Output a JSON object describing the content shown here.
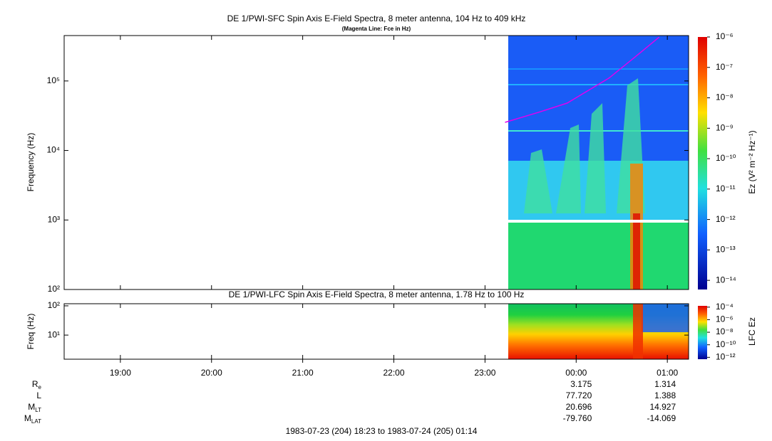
{
  "chart_data": [
    {
      "type": "spectrogram",
      "title": "DE 1/PWI-SFC  Spin Axis E-Field Spectra, 8 meter antenna, 104 Hz to 409 kHz",
      "subtitle": "(Magenta Line: Fce in Hz)",
      "y_label": "Frequency (Hz)",
      "log_y": true,
      "xlim": [
        18.3833,
        25.2333
      ],
      "ylim": [
        100,
        450000
      ],
      "yticks": [
        {
          "value": 100,
          "label": "10²"
        },
        {
          "value": 1000,
          "label": "10³"
        },
        {
          "value": 10000,
          "label": "10⁴"
        },
        {
          "value": 100000,
          "label": "10⁵"
        }
      ],
      "line": {
        "color": "#e000f0",
        "x": [
          23.22,
          23.59,
          23.9,
          24.36,
          24.67,
          24.91
        ],
        "values": [
          25400,
          35500,
          48000,
          110000,
          235000,
          427000
        ]
      },
      "colorbar": {
        "label": "Ez (V² m⁻² Hz⁻¹)",
        "lim": [
          1e-06,
          5e-15
        ],
        "ticks": [
          {
            "value": 1e-06,
            "label": "10⁻⁶"
          },
          {
            "value": 1e-07,
            "label": "10⁻⁷"
          },
          {
            "value": 1e-08,
            "label": "10⁻⁸"
          },
          {
            "value": 1e-09,
            "label": "10⁻⁹"
          },
          {
            "value": 1e-10,
            "label": "10⁻¹⁰"
          },
          {
            "value": 1e-11,
            "label": "10⁻¹¹"
          },
          {
            "value": 1e-12,
            "label": "10⁻¹²"
          },
          {
            "value": 1e-13,
            "label": "10⁻¹³"
          },
          {
            "value": 1e-14,
            "label": "10⁻¹⁴"
          }
        ]
      }
    },
    {
      "type": "spectrogram",
      "title": "DE 1/PWI-LFC  Spin Axis E-Field Spectra, 8 meter antenna, 1.78 Hz to 100 Hz",
      "y_label": "Freq (Hz)",
      "log_y": true,
      "xlim": [
        18.3833,
        25.2333
      ],
      "ylim": [
        1.5,
        118
      ],
      "yticks": [
        {
          "value": 10,
          "label": "10¹"
        },
        {
          "value": 100,
          "label": "10²"
        }
      ],
      "xticks": [
        {
          "value": 19,
          "label": "19:00"
        },
        {
          "value": 20,
          "label": "20:00"
        },
        {
          "value": 21,
          "label": "21:00"
        },
        {
          "value": 22,
          "label": "22:00"
        },
        {
          "value": 23,
          "label": "23:00"
        },
        {
          "value": 24,
          "label": "00:00"
        },
        {
          "value": 25,
          "label": "01:00"
        }
      ],
      "colorbar": {
        "label": "LFC Ez",
        "lim": [
          0.00016,
          5e-13
        ],
        "ticks": [
          {
            "value": 0.0001,
            "label": "10⁻⁴"
          },
          {
            "value": 1e-06,
            "label": "10⁻⁶"
          },
          {
            "value": 1e-08,
            "label": "10⁻⁸"
          },
          {
            "value": 1e-10,
            "label": "10⁻¹⁰"
          },
          {
            "value": 1e-12,
            "label": "10⁻¹²"
          }
        ]
      }
    }
  ],
  "ephemeris": {
    "rows": [
      {
        "label": {
          "main": "R",
          "sub": "e"
        },
        "values": [
          "3.175",
          "1.314"
        ]
      },
      {
        "label": {
          "main": "L"
        },
        "values": [
          "77.720",
          "1.388"
        ]
      },
      {
        "label": {
          "main": "M",
          "sub": "LT"
        },
        "values": [
          "20.696",
          "14.927"
        ]
      },
      {
        "label": {
          "main": "M",
          "sub": "LAT"
        },
        "values": [
          "-79.760",
          "-14.069"
        ]
      }
    ]
  },
  "footer": "1983-07-23 (204) 18:23 to 1983-07-24 (205) 01:14"
}
